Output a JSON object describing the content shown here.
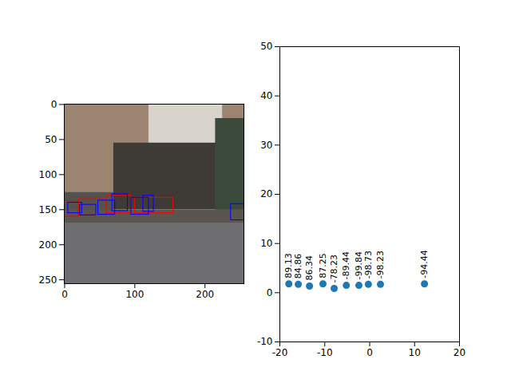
{
  "chart_data": [
    {
      "type": "image",
      "xlim": [
        -0.5,
        255.5
      ],
      "ylim": [
        255.5,
        -0.5
      ],
      "xticks": [
        0,
        100,
        200
      ],
      "yticks": [
        0,
        50,
        100,
        150,
        200,
        250
      ],
      "regions": [
        {
          "color": "#9b8470",
          "x1": -0.5,
          "y1": -0.5,
          "x2": 255.5,
          "y2": 125
        },
        {
          "color": "#d8d4cc",
          "x1": 120,
          "y1": 0,
          "x2": 225,
          "y2": 60
        },
        {
          "color": "#3e3a36",
          "x1": 70,
          "y1": 55,
          "x2": 225,
          "y2": 150
        },
        {
          "color": "#3b4a3a",
          "x1": 215,
          "y1": 20,
          "x2": 255.5,
          "y2": 160
        },
        {
          "color": "#55524e",
          "x1": -0.5,
          "y1": 125,
          "x2": 70,
          "y2": 165
        },
        {
          "color": "#5a5550",
          "x1": -0.5,
          "y1": 150,
          "x2": 255.5,
          "y2": 170
        },
        {
          "color": "#6e6e70",
          "x1": -0.5,
          "y1": 170,
          "x2": 255.5,
          "y2": 255.5
        }
      ],
      "boxes": [
        {
          "color": "#ff0000",
          "x1": 0,
          "y1": 138,
          "x2": 20,
          "y2": 160
        },
        {
          "color": "#ff0000",
          "x1": 20,
          "y1": 135,
          "x2": 60,
          "y2": 158
        },
        {
          "color": "#ff0000",
          "x1": 60,
          "y1": 130,
          "x2": 95,
          "y2": 155
        },
        {
          "color": "#ff0000",
          "x1": 100,
          "y1": 133,
          "x2": 155,
          "y2": 155
        },
        {
          "color": "#0000ff",
          "x1": 5,
          "y1": 140,
          "x2": 25,
          "y2": 155
        },
        {
          "color": "#0000ff",
          "x1": 22,
          "y1": 143,
          "x2": 45,
          "y2": 158
        },
        {
          "color": "#0000ff",
          "x1": 48,
          "y1": 137,
          "x2": 72,
          "y2": 157
        },
        {
          "color": "#0000ff",
          "x1": 68,
          "y1": 128,
          "x2": 90,
          "y2": 152
        },
        {
          "color": "#0000ff",
          "x1": 95,
          "y1": 133,
          "x2": 120,
          "y2": 157
        },
        {
          "color": "#0000ff",
          "x1": 112,
          "y1": 130,
          "x2": 127,
          "y2": 153
        },
        {
          "color": "#0000ff",
          "x1": 237,
          "y1": 142,
          "x2": 256,
          "y2": 165
        }
      ]
    },
    {
      "type": "scatter",
      "x": [
        -18.0,
        -15.9,
        -13.4,
        -10.4,
        -7.9,
        -5.2,
        -2.4,
        -0.3,
        2.4,
        12.2
      ],
      "y": [
        1.8,
        1.7,
        1.35,
        1.8,
        0.86,
        1.5,
        1.5,
        1.7,
        1.7,
        1.8
      ],
      "labels": [
        "89.13",
        "84.86",
        "86.34",
        "87.25",
        "-78.23",
        "-89.44",
        "-99.84",
        "-98.73",
        "-98.23",
        "-94.44"
      ],
      "color": "#1f77b4",
      "xlim": [
        -20,
        20
      ],
      "ylim": [
        -10,
        50
      ],
      "xticks": [
        -20,
        -10,
        0,
        10,
        20
      ],
      "yticks": [
        -10,
        0,
        10,
        20,
        30,
        40,
        50
      ]
    }
  ]
}
